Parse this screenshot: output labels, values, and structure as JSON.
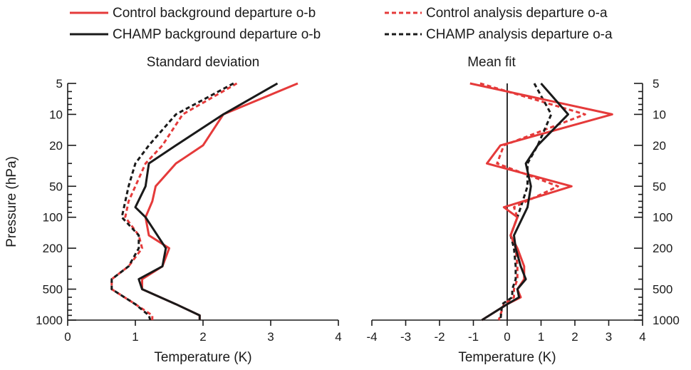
{
  "colors": {
    "control": "#e53a3a",
    "champ": "#1a1a1a"
  },
  "legend": {
    "items": [
      {
        "label": "Control background departure o-b",
        "series": "control",
        "dashed": false
      },
      {
        "label": "Control analysis departure o-a",
        "series": "control",
        "dashed": true
      },
      {
        "label": "CHAMP background departure o-b",
        "series": "champ",
        "dashed": false
      },
      {
        "label": "CHAMP analysis departure o-a",
        "series": "champ",
        "dashed": true
      }
    ]
  },
  "chart_data": [
    {
      "type": "line",
      "title": "Standard deviation",
      "xlabel": "Temperature (K)",
      "ylabel": "Pressure (hPa)",
      "xlim": [
        0,
        4
      ],
      "ylim": [
        5,
        1000
      ],
      "y_scale": "log",
      "y_inverted": true,
      "xticks": [
        "0",
        "1",
        "2",
        "3",
        "4"
      ],
      "yticks": [
        "5",
        "10",
        "20",
        "50",
        "100",
        "200",
        "500",
        "1000"
      ],
      "ytick_position": "left",
      "series": [
        {
          "name": "Control background departure o-b",
          "color": "control",
          "dashed": false,
          "points": [
            [
              3.4,
              5
            ],
            [
              2.3,
              10
            ],
            [
              2.0,
              20
            ],
            [
              1.6,
              30
            ],
            [
              1.3,
              50
            ],
            [
              1.25,
              70
            ],
            [
              1.15,
              100
            ],
            [
              1.2,
              150
            ],
            [
              1.5,
              200
            ],
            [
              1.4,
              300
            ],
            [
              1.1,
              400
            ],
            [
              1.1,
              500
            ],
            [
              1.6,
              700
            ],
            [
              1.95,
              900
            ],
            [
              1.95,
              1000
            ]
          ]
        },
        {
          "name": "Control analysis departure o-a",
          "color": "control",
          "dashed": true,
          "points": [
            [
              2.5,
              5
            ],
            [
              1.7,
              10
            ],
            [
              1.4,
              20
            ],
            [
              1.15,
              30
            ],
            [
              1.0,
              50
            ],
            [
              0.9,
              70
            ],
            [
              0.85,
              100
            ],
            [
              1.05,
              150
            ],
            [
              1.1,
              200
            ],
            [
              0.9,
              300
            ],
            [
              0.65,
              400
            ],
            [
              0.65,
              500
            ],
            [
              1.0,
              700
            ],
            [
              1.25,
              900
            ],
            [
              1.25,
              1000
            ]
          ]
        },
        {
          "name": "CHAMP background departure o-b",
          "color": "champ",
          "dashed": false,
          "points": [
            [
              3.1,
              5
            ],
            [
              2.3,
              10
            ],
            [
              1.6,
              20
            ],
            [
              1.2,
              30
            ],
            [
              1.15,
              50
            ],
            [
              1.0,
              80
            ],
            [
              1.15,
              100
            ],
            [
              1.45,
              200
            ],
            [
              1.4,
              300
            ],
            [
              1.05,
              400
            ],
            [
              1.1,
              500
            ],
            [
              1.6,
              700
            ],
            [
              1.95,
              900
            ],
            [
              1.95,
              1000
            ]
          ]
        },
        {
          "name": "CHAMP analysis departure o-a",
          "color": "champ",
          "dashed": true,
          "points": [
            [
              2.45,
              5
            ],
            [
              1.6,
              10
            ],
            [
              1.2,
              20
            ],
            [
              1.0,
              30
            ],
            [
              0.9,
              50
            ],
            [
              0.8,
              100
            ],
            [
              1.05,
              150
            ],
            [
              1.05,
              200
            ],
            [
              0.9,
              300
            ],
            [
              0.65,
              400
            ],
            [
              0.65,
              500
            ],
            [
              1.0,
              700
            ],
            [
              1.2,
              900
            ],
            [
              1.22,
              1000
            ]
          ]
        }
      ]
    },
    {
      "type": "line",
      "title": "Mean fit",
      "xlabel": "Temperature (K)",
      "ylabel": "",
      "xlim": [
        -4,
        4
      ],
      "ylim": [
        5,
        1000
      ],
      "y_scale": "log",
      "y_inverted": true,
      "xticks": [
        "-4",
        "-3",
        "-2",
        "-1",
        "0",
        "1",
        "2",
        "3",
        "4"
      ],
      "yticks": [
        "5",
        "10",
        "20",
        "50",
        "100",
        "200",
        "500",
        "1000"
      ],
      "ytick_position": "right",
      "zero_line": true,
      "series": [
        {
          "name": "Control background departure o-b",
          "color": "control",
          "dashed": false,
          "points": [
            [
              -1.1,
              5
            ],
            [
              3.1,
              10
            ],
            [
              -0.2,
              20
            ],
            [
              -0.6,
              30
            ],
            [
              1.9,
              50
            ],
            [
              -0.1,
              80
            ],
            [
              0.3,
              100
            ],
            [
              0.1,
              150
            ],
            [
              0.3,
              200
            ],
            [
              0.5,
              300
            ],
            [
              0.5,
              400
            ],
            [
              0.3,
              500
            ],
            [
              0.4,
              600
            ],
            [
              0.0,
              700
            ],
            [
              -0.75,
              1000
            ]
          ]
        },
        {
          "name": "Control analysis departure o-a",
          "color": "control",
          "dashed": true,
          "points": [
            [
              -0.8,
              5
            ],
            [
              2.3,
              10
            ],
            [
              -0.1,
              20
            ],
            [
              -0.3,
              30
            ],
            [
              1.5,
              50
            ],
            [
              0.2,
              80
            ],
            [
              0.3,
              100
            ],
            [
              0.1,
              150
            ],
            [
              0.25,
              200
            ],
            [
              0.3,
              300
            ],
            [
              0.3,
              400
            ],
            [
              0.2,
              500
            ],
            [
              0.2,
              600
            ],
            [
              -0.1,
              700
            ],
            [
              -0.25,
              1000
            ]
          ]
        },
        {
          "name": "CHAMP background departure o-b",
          "color": "champ",
          "dashed": false,
          "points": [
            [
              1.0,
              5
            ],
            [
              1.8,
              10
            ],
            [
              0.9,
              20
            ],
            [
              0.55,
              30
            ],
            [
              0.7,
              50
            ],
            [
              0.6,
              80
            ],
            [
              0.2,
              150
            ],
            [
              0.25,
              200
            ],
            [
              0.4,
              300
            ],
            [
              0.55,
              400
            ],
            [
              0.3,
              500
            ],
            [
              0.35,
              600
            ],
            [
              0.0,
              700
            ],
            [
              -0.75,
              1000
            ]
          ]
        },
        {
          "name": "CHAMP analysis departure o-a",
          "color": "champ",
          "dashed": true,
          "points": [
            [
              0.8,
              5
            ],
            [
              1.3,
              10
            ],
            [
              0.9,
              20
            ],
            [
              0.6,
              30
            ],
            [
              0.6,
              50
            ],
            [
              0.4,
              80
            ],
            [
              0.3,
              100
            ],
            [
              0.1,
              150
            ],
            [
              0.2,
              200
            ],
            [
              0.25,
              300
            ],
            [
              0.25,
              400
            ],
            [
              0.15,
              500
            ],
            [
              0.15,
              600
            ],
            [
              -0.15,
              700
            ],
            [
              -0.2,
              1000
            ]
          ]
        }
      ]
    }
  ]
}
